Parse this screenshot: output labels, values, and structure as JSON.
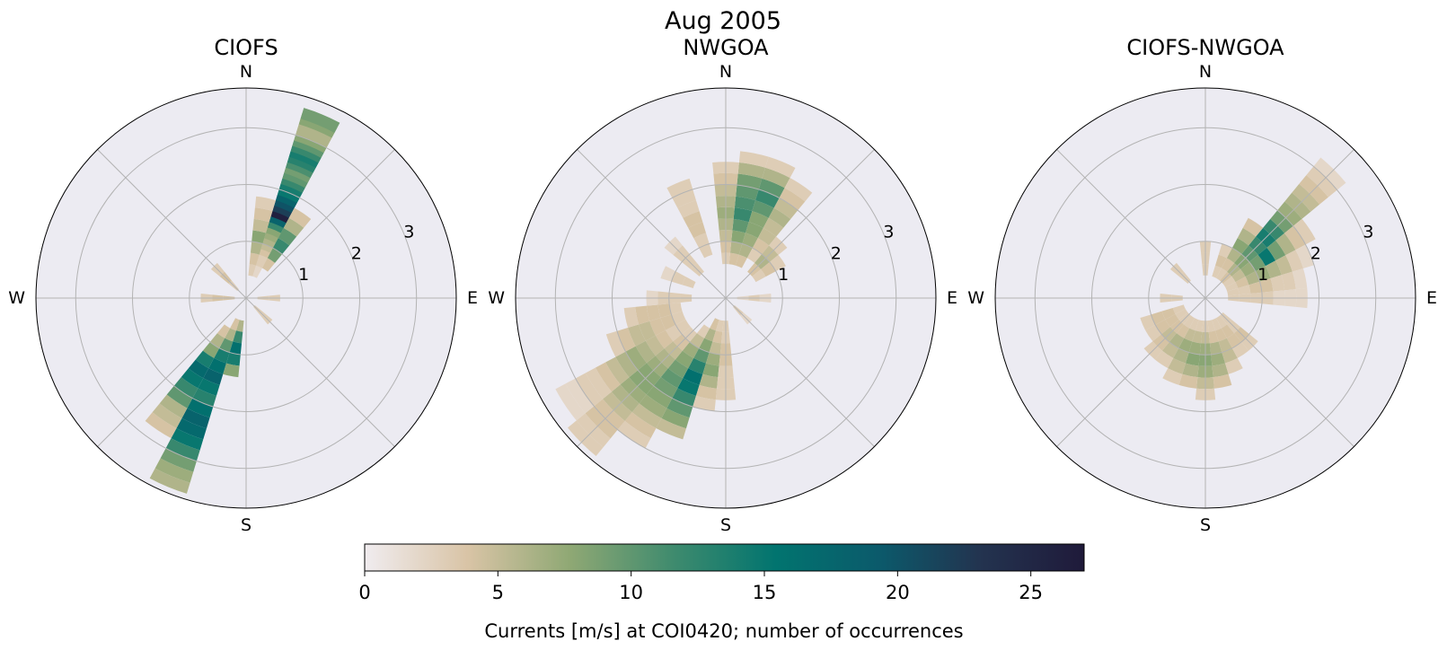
{
  "figure": {
    "suptitle": "Aug 2005",
    "colorbar": {
      "label": "Currents [m/s] at COI0420; number of occurrences",
      "min": 0,
      "max": 27,
      "ticks": [
        0,
        5,
        10,
        15,
        20,
        25
      ],
      "tick_labels": [
        "0",
        "5",
        "10",
        "15",
        "20",
        "25"
      ],
      "colormap": [
        "#f0ecef",
        "#d9c4a6",
        "#8fa874",
        "#3f8b6e",
        "#01746f",
        "#0b5a6b",
        "#23334f",
        "#1f1a3a"
      ]
    },
    "panel_background": "#ecebf2",
    "grid_color": "#b3b3b3"
  },
  "chart_data": [
    {
      "type": "heatmap",
      "subtype": "polar-rose-histogram",
      "title": "CIOFS",
      "direction_labels": [
        "N",
        "E",
        "S",
        "W"
      ],
      "radial_tick_labels": [
        "1",
        "2",
        "3"
      ],
      "rlim": [
        0,
        3.7
      ],
      "angular_bin_deg": 11.25,
      "radial_bin": 0.1,
      "cells": [
        {
          "dir": 22.5,
          "r": [
            0.4,
            0.5,
            0.6,
            0.7,
            0.8,
            0.9,
            1.0,
            1.1,
            1.2,
            1.3,
            1.4,
            1.5,
            1.6,
            1.7,
            1.8,
            1.9,
            2.0,
            2.1,
            2.2,
            2.3,
            2.4,
            2.5,
            2.6,
            2.7,
            2.8,
            2.9,
            3.0,
            3.1,
            3.2,
            3.3
          ],
          "count": [
            2,
            2,
            3,
            3,
            4,
            5,
            6,
            7,
            8,
            12,
            18,
            26,
            22,
            20,
            18,
            15,
            14,
            12,
            10,
            9,
            11,
            13,
            14,
            12,
            10,
            8,
            6,
            6,
            8,
            9
          ]
        },
        {
          "dir": 11.25,
          "r": [
            0.4,
            0.6,
            0.8,
            1.0,
            1.2,
            1.4,
            1.6
          ],
          "count": [
            3,
            4,
            6,
            8,
            5,
            4,
            3
          ]
        },
        {
          "dir": 33.75,
          "r": [
            0.6,
            0.8,
            1.0,
            1.2,
            1.4,
            1.6
          ],
          "count": [
            4,
            9,
            12,
            10,
            6,
            4
          ]
        },
        {
          "dir": 202.5,
          "r": [
            0.4,
            0.6,
            0.8,
            1.0,
            1.2,
            1.4,
            1.6,
            1.8,
            2.0,
            2.2,
            2.4,
            2.6,
            2.8,
            3.0,
            3.2,
            3.4
          ],
          "count": [
            4,
            6,
            10,
            14,
            16,
            18,
            15,
            13,
            16,
            18,
            17,
            15,
            12,
            9,
            7,
            6
          ]
        },
        {
          "dir": 191.25,
          "r": [
            0.4,
            0.6,
            0.8,
            1.0,
            1.2
          ],
          "count": [
            6,
            12,
            16,
            14,
            8
          ]
        },
        {
          "dir": 213.75,
          "r": [
            0.6,
            0.8,
            1.0,
            1.2,
            1.4,
            1.6,
            1.8,
            2.0,
            2.2,
            2.4,
            2.6
          ],
          "count": [
            4,
            6,
            8,
            14,
            17,
            15,
            12,
            10,
            6,
            5,
            4
          ]
        },
        {
          "dir": 135.0,
          "r": [
            0.2,
            0.4
          ],
          "count": [
            3,
            3
          ]
        },
        {
          "dir": 315.0,
          "r": [
            0.2,
            0.4,
            0.6
          ],
          "count": [
            3,
            4,
            3
          ]
        },
        {
          "dir": 270.0,
          "r": [
            0.2,
            0.4,
            0.6
          ],
          "count": [
            4,
            4,
            3
          ]
        },
        {
          "dir": 90.0,
          "r": [
            0.2,
            0.4
          ],
          "count": [
            3,
            3
          ]
        }
      ]
    },
    {
      "type": "heatmap",
      "subtype": "polar-rose-histogram",
      "title": "NWGOA",
      "direction_labels": [
        "N",
        "E",
        "S",
        "W"
      ],
      "radial_tick_labels": [
        "1",
        "2",
        "3"
      ],
      "rlim": [
        0,
        3.7
      ],
      "angular_bin_deg": 11.25,
      "radial_bin": 0.1,
      "cells": [
        {
          "dir": 11.25,
          "r": [
            0.6,
            0.8,
            1.0,
            1.2,
            1.4,
            1.6,
            1.8,
            2.0,
            2.2,
            2.4
          ],
          "count": [
            4,
            6,
            8,
            10,
            12,
            11,
            10,
            9,
            6,
            3
          ]
        },
        {
          "dir": 22.5,
          "r": [
            0.6,
            0.8,
            1.0,
            1.2,
            1.4,
            1.6,
            1.8,
            2.0,
            2.2,
            2.4
          ],
          "count": [
            4,
            6,
            7,
            8,
            8,
            10,
            12,
            10,
            6,
            3
          ]
        },
        {
          "dir": 33.75,
          "r": [
            0.8,
            1.0,
            1.2,
            1.4,
            1.6,
            1.8,
            2.0,
            2.2
          ],
          "count": [
            3,
            4,
            5,
            5,
            6,
            5,
            4,
            3
          ]
        },
        {
          "dir": 0.0,
          "r": [
            0.6,
            0.8,
            1.0,
            1.2,
            1.4,
            1.6,
            1.8,
            2.0,
            2.2
          ],
          "count": [
            3,
            4,
            5,
            6,
            7,
            6,
            5,
            4,
            3
          ]
        },
        {
          "dir": 337.5,
          "r": [
            0.8,
            1.0,
            1.2,
            1.4,
            1.6,
            1.8,
            2.0
          ],
          "count": [
            3,
            3,
            4,
            4,
            3,
            3,
            3
          ]
        },
        {
          "dir": 202.5,
          "r": [
            0.4,
            0.6,
            0.8,
            1.0,
            1.2,
            1.4,
            1.6,
            1.8,
            2.0,
            2.2,
            2.4
          ],
          "count": [
            4,
            6,
            8,
            10,
            13,
            16,
            15,
            12,
            10,
            8,
            5
          ]
        },
        {
          "dir": 213.75,
          "r": [
            0.6,
            0.8,
            1.0,
            1.2,
            1.4,
            1.6,
            1.8,
            2.0,
            2.2,
            2.4,
            2.6,
            2.8
          ],
          "count": [
            3,
            5,
            7,
            8,
            9,
            10,
            9,
            8,
            7,
            5,
            4,
            3
          ]
        },
        {
          "dir": 225.0,
          "r": [
            0.8,
            1.0,
            1.2,
            1.4,
            1.6,
            1.8,
            2.0,
            2.2,
            2.4,
            2.6,
            2.8,
            3.0,
            3.2,
            3.4
          ],
          "count": [
            3,
            4,
            5,
            6,
            7,
            8,
            8,
            7,
            6,
            5,
            4,
            4,
            3,
            3
          ]
        },
        {
          "dir": 236.25,
          "r": [
            0.8,
            1.0,
            1.2,
            1.4,
            1.6,
            1.8,
            2.0,
            2.2,
            2.4,
            2.6,
            2.8,
            3.0,
            3.2
          ],
          "count": [
            3,
            3,
            4,
            5,
            6,
            7,
            6,
            5,
            4,
            3,
            3,
            2,
            2
          ]
        },
        {
          "dir": 247.5,
          "r": [
            0.8,
            1.0,
            1.2,
            1.4,
            1.6,
            1.8,
            2.0
          ],
          "count": [
            3,
            4,
            4,
            5,
            5,
            4,
            3
          ]
        },
        {
          "dir": 258.75,
          "r": [
            0.8,
            1.0,
            1.2,
            1.4,
            1.6
          ],
          "count": [
            3,
            4,
            4,
            4,
            3
          ]
        },
        {
          "dir": 191.25,
          "r": [
            0.4,
            0.6,
            0.8,
            1.0,
            1.2,
            1.4,
            1.6,
            1.8
          ],
          "count": [
            3,
            4,
            5,
            7,
            8,
            6,
            4,
            3
          ]
        },
        {
          "dir": 180.0,
          "r": [
            0.4,
            0.6,
            0.8,
            1.0,
            1.2,
            1.4,
            1.6
          ],
          "count": [
            3,
            3,
            4,
            4,
            3,
            3,
            3
          ]
        },
        {
          "dir": 45.0,
          "r": [
            0.6,
            0.8,
            1.0,
            1.2
          ],
          "count": [
            4,
            6,
            5,
            3
          ]
        },
        {
          "dir": 56.25,
          "r": [
            0.6,
            0.8,
            1.0
          ],
          "count": [
            3,
            4,
            3
          ]
        },
        {
          "dir": 270.0,
          "r": [
            0.6,
            0.8,
            1.0,
            1.2
          ],
          "count": [
            3,
            3,
            3,
            2
          ]
        },
        {
          "dir": 292.5,
          "r": [
            0.6,
            0.8,
            1.0
          ],
          "count": [
            3,
            3,
            2
          ]
        },
        {
          "dir": 315.0,
          "r": [
            0.6,
            0.8,
            1.0,
            1.2
          ],
          "count": [
            3,
            3,
            3,
            2
          ]
        },
        {
          "dir": 135.0,
          "r": [
            0.2,
            0.4
          ],
          "count": [
            3,
            2
          ]
        },
        {
          "dir": 90.0,
          "r": [
            0.2,
            0.4,
            0.6
          ],
          "count": [
            2,
            3,
            2
          ]
        }
      ]
    },
    {
      "type": "heatmap",
      "subtype": "polar-rose-histogram",
      "title": "CIOFS-NWGOA",
      "direction_labels": [
        "N",
        "E",
        "S",
        "W"
      ],
      "radial_tick_labels": [
        "1",
        "2",
        "3"
      ],
      "rlim": [
        0,
        3.7
      ],
      "angular_bin_deg": 11.25,
      "radial_bin": 0.1,
      "cells": [
        {
          "dir": 45.0,
          "r": [
            0.4,
            0.6,
            0.8,
            1.0,
            1.2,
            1.4,
            1.6,
            1.8,
            2.0,
            2.2,
            2.4,
            2.6,
            2.8,
            3.0
          ],
          "count": [
            4,
            6,
            8,
            10,
            12,
            14,
            12,
            9,
            7,
            6,
            5,
            4,
            3,
            2
          ]
        },
        {
          "dir": 56.25,
          "r": [
            0.4,
            0.6,
            0.8,
            1.0,
            1.2,
            1.4,
            1.6,
            1.8,
            2.0
          ],
          "count": [
            3,
            5,
            7,
            9,
            15,
            9,
            6,
            4,
            3
          ]
        },
        {
          "dir": 33.75,
          "r": [
            0.4,
            0.6,
            0.8,
            1.0,
            1.2,
            1.4
          ],
          "count": [
            3,
            4,
            6,
            8,
            6,
            4
          ]
        },
        {
          "dir": 67.5,
          "r": [
            0.4,
            0.6,
            0.8,
            1.0,
            1.2,
            1.4,
            1.6,
            1.8
          ],
          "count": [
            3,
            4,
            6,
            7,
            6,
            5,
            3,
            2
          ]
        },
        {
          "dir": 78.75,
          "r": [
            0.4,
            0.6,
            0.8,
            1.0,
            1.2,
            1.4,
            1.6
          ],
          "count": [
            3,
            3,
            4,
            4,
            3,
            3,
            2
          ]
        },
        {
          "dir": 90.0,
          "r": [
            0.4,
            0.6,
            0.8,
            1.0,
            1.2,
            1.4,
            1.6
          ],
          "count": [
            3,
            3,
            3,
            3,
            2,
            2,
            2
          ]
        },
        {
          "dir": 180.0,
          "r": [
            0.4,
            0.6,
            0.8,
            1.0,
            1.2,
            1.4,
            1.6
          ],
          "count": [
            3,
            5,
            7,
            8,
            7,
            5,
            3
          ]
        },
        {
          "dir": 191.25,
          "r": [
            0.4,
            0.6,
            0.8,
            1.0,
            1.2,
            1.4
          ],
          "count": [
            3,
            5,
            7,
            8,
            6,
            4
          ]
        },
        {
          "dir": 168.75,
          "r": [
            0.4,
            0.6,
            0.8,
            1.0,
            1.2,
            1.4
          ],
          "count": [
            3,
            4,
            6,
            7,
            6,
            4
          ]
        },
        {
          "dir": 202.5,
          "r": [
            0.4,
            0.6,
            0.8,
            1.0,
            1.2,
            1.4
          ],
          "count": [
            3,
            5,
            7,
            6,
            5,
            3
          ]
        },
        {
          "dir": 213.75,
          "r": [
            0.4,
            0.6,
            0.8,
            1.0,
            1.2
          ],
          "count": [
            3,
            4,
            6,
            5,
            3
          ]
        },
        {
          "dir": 225.0,
          "r": [
            0.4,
            0.6,
            0.8,
            1.0,
            1.2
          ],
          "count": [
            3,
            4,
            5,
            4,
            3
          ]
        },
        {
          "dir": 236.25,
          "r": [
            0.4,
            0.6,
            0.8,
            1.0
          ],
          "count": [
            3,
            4,
            4,
            3
          ]
        },
        {
          "dir": 247.5,
          "r": [
            0.4,
            0.6,
            0.8,
            1.0
          ],
          "count": [
            3,
            4,
            4,
            3
          ]
        },
        {
          "dir": 157.5,
          "r": [
            0.4,
            0.6,
            0.8,
            1.0,
            1.2
          ],
          "count": [
            3,
            4,
            5,
            5,
            3
          ]
        },
        {
          "dir": 146.25,
          "r": [
            0.4,
            0.6,
            0.8,
            1.0
          ],
          "count": [
            3,
            4,
            4,
            3
          ]
        },
        {
          "dir": 135.0,
          "r": [
            0.4,
            0.6,
            0.8,
            1.0
          ],
          "count": [
            3,
            3,
            4,
            3
          ]
        },
        {
          "dir": 0.0,
          "r": [
            0.4,
            0.6,
            0.8
          ],
          "count": [
            3,
            3,
            3
          ]
        },
        {
          "dir": 315.0,
          "r": [
            0.4,
            0.6
          ],
          "count": [
            3,
            3
          ]
        },
        {
          "dir": 270.0,
          "r": [
            0.4,
            0.6
          ],
          "count": [
            3,
            3
          ]
        },
        {
          "dir": 22.5,
          "r": [
            0.4,
            0.6,
            0.8
          ],
          "count": [
            3,
            4,
            3
          ]
        }
      ]
    }
  ]
}
